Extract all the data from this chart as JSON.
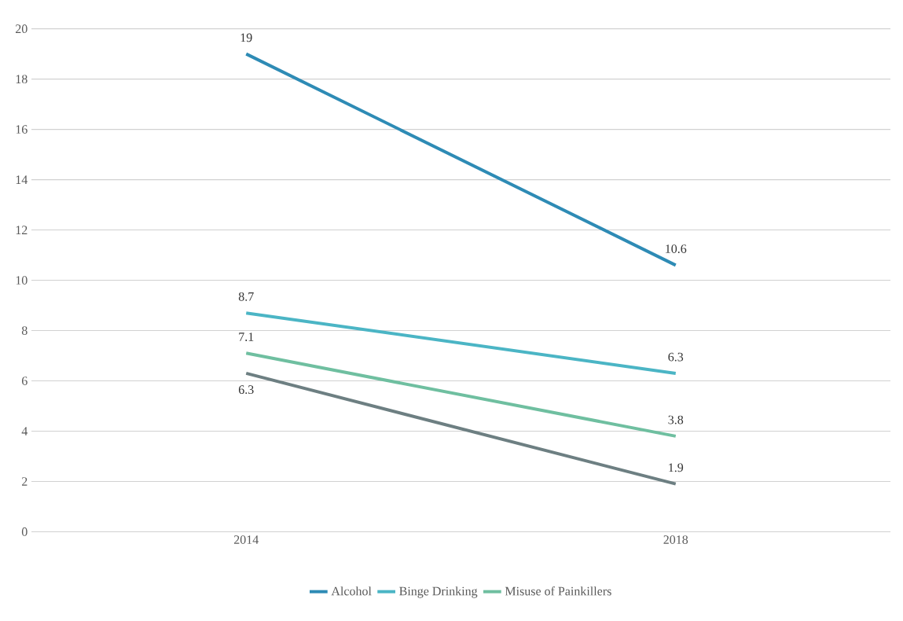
{
  "chart_data": {
    "type": "line",
    "categories": [
      "2014",
      "2018"
    ],
    "series": [
      {
        "name": "Alcohol",
        "color": "#2e8bb5",
        "values": [
          19,
          10.6
        ]
      },
      {
        "name": "Binge Drinking",
        "color": "#4bb5c5",
        "values": [
          8.7,
          6.3
        ]
      },
      {
        "name": "Misuse of Painkillers",
        "color": "#6fbfa0",
        "values": [
          7.1,
          3.8
        ]
      },
      {
        "color": "#6d7f82",
        "values": [
          6.3,
          1.9
        ]
      }
    ],
    "ylim": [
      0,
      20
    ],
    "yticks": [
      0,
      2,
      4,
      6,
      8,
      10,
      12,
      14,
      16,
      18,
      20
    ],
    "grid": "y",
    "legend": "bottom",
    "data_labels": true,
    "marker": "none",
    "line_style": "solid"
  }
}
